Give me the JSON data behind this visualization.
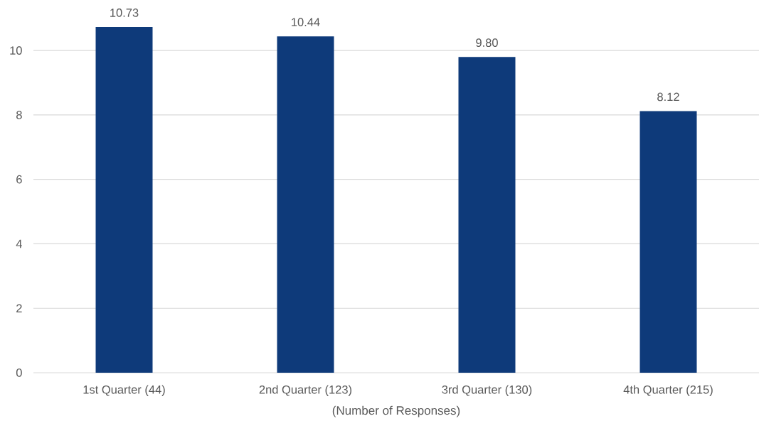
{
  "chart_data": {
    "type": "bar",
    "xlabel": "(Number of Responses)",
    "categories": [
      "1st Quarter (44)",
      "2nd Quarter (123)",
      "3rd Quarter (130)",
      "4th Quarter (215)"
    ],
    "values": [
      10.73,
      10.44,
      9.8,
      8.12
    ],
    "value_labels": [
      "10.73",
      "10.44",
      "9.80",
      "8.12"
    ],
    "color": "#0e3a7a",
    "ylim": [
      0,
      10.73
    ],
    "yticks": [
      0,
      2,
      4,
      6,
      8,
      10
    ],
    "grid": "y"
  }
}
